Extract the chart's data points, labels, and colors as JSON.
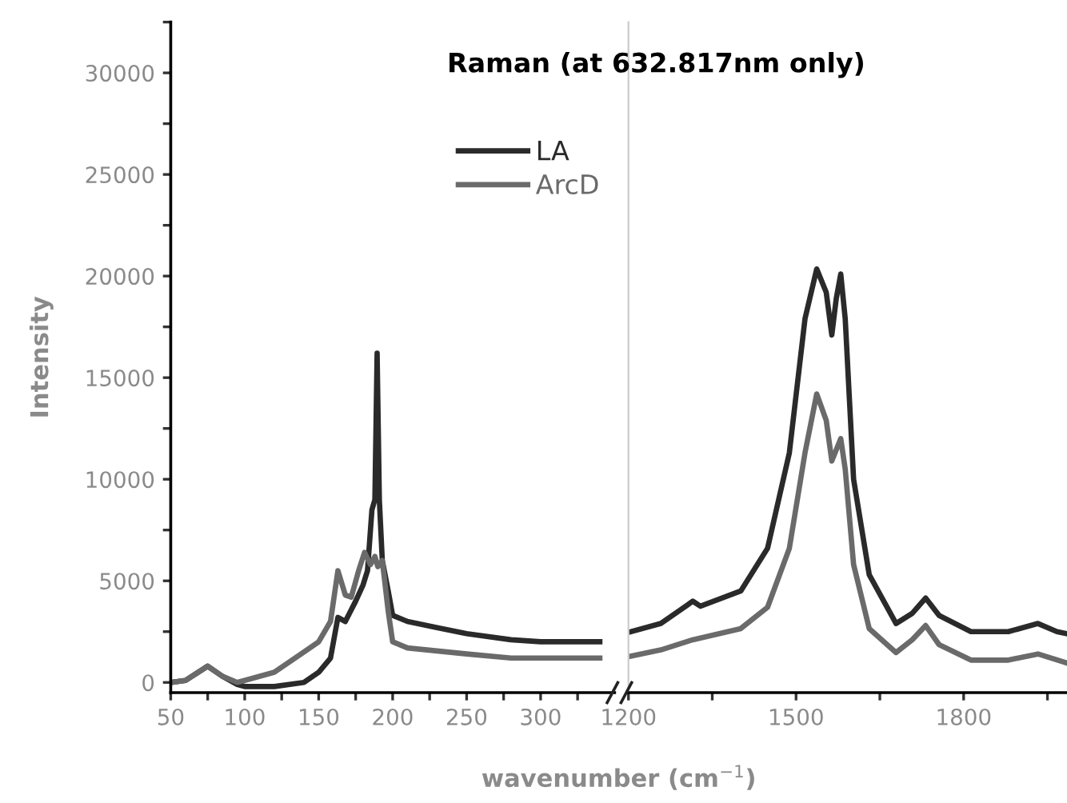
{
  "chart_data": [
    {
      "type": "line",
      "title": "Raman (at 632.817nm only)",
      "xlabel": "wavenumber (cm$^{−1}$)",
      "ylabel": "Intensity",
      "legend": "top right",
      "grid": false,
      "line_style": "solid",
      "marker": "none",
      "xlim": [
        50,
        350
      ],
      "xticks": [
        50,
        {
          "value": 75,
          "label": null
        },
        100,
        {
          "value": 125,
          "label": null
        },
        150,
        {
          "value": 175,
          "label": null
        },
        200,
        {
          "value": 225,
          "label": null
        },
        250,
        {
          "value": 275,
          "label": null
        },
        300,
        {
          "value": 325,
          "label": null
        }
      ],
      "ylim": [
        -500,
        32500
      ],
      "yticks": [
        0,
        {
          "value": 2500,
          "label": null
        },
        5000,
        {
          "value": 7500,
          "label": null
        },
        10000,
        {
          "value": 12500,
          "label": null
        },
        15000,
        {
          "value": 17500,
          "label": null
        },
        20000,
        {
          "value": 22500,
          "label": null
        },
        25000,
        {
          "value": 27500,
          "label": null
        },
        30000,
        {
          "value": 32500,
          "label": null
        }
      ],
      "series": [
        {
          "name": "LA",
          "color": "#2a2a2a",
          "x": [
            50,
            60,
            75,
            85,
            95,
            100,
            120,
            140,
            150,
            158,
            163,
            168,
            175,
            180,
            183,
            186,
            188,
            189.5,
            191,
            193,
            197,
            200,
            210,
            230,
            250,
            280,
            300,
            340
          ],
          "values": [
            0,
            100,
            800,
            300,
            -100,
            -200,
            -200,
            0,
            500,
            1200,
            3200,
            3000,
            4000,
            4800,
            5500,
            8500,
            9000,
            16200,
            9000,
            6000,
            4500,
            3300,
            3000,
            2700,
            2400,
            2100,
            2000,
            2000
          ]
        },
        {
          "name": "ArcD",
          "color": "#6a6a6a",
          "x": [
            50,
            60,
            75,
            85,
            95,
            100,
            120,
            140,
            150,
            158,
            163,
            168,
            172,
            177,
            181,
            185,
            188,
            190,
            193,
            197,
            200,
            210,
            250,
            280,
            340
          ],
          "values": [
            0,
            100,
            800,
            300,
            0,
            100,
            500,
            1500,
            2000,
            3000,
            5500,
            4300,
            4200,
            5500,
            6400,
            5800,
            6200,
            5700,
            6000,
            3500,
            2000,
            1700,
            1400,
            1200,
            1200
          ]
        }
      ]
    },
    {
      "type": "line",
      "tick_labels": "x",
      "grid": false,
      "line_style": "solid",
      "marker": "none",
      "xlim": [
        1200,
        1985
      ],
      "xticks": [
        1200,
        {
          "value": 1350,
          "label": null
        },
        1500,
        {
          "value": 1650,
          "label": null
        },
        1800,
        {
          "value": 1950,
          "label": null
        }
      ],
      "ylim": [
        -500,
        32500
      ],
      "series": [
        {
          "color": "#2a2a2a",
          "x": [
            1205,
            1258,
            1305,
            1315,
            1329,
            1401,
            1449,
            1488,
            1516,
            1537,
            1554,
            1564,
            1572,
            1580,
            1588,
            1603,
            1631,
            1679,
            1708,
            1732,
            1756,
            1813,
            1880,
            1933,
            1967,
            1985
          ],
          "values": [
            2500,
            2900,
            3800,
            4000,
            3750,
            4500,
            6600,
            11300,
            17900,
            20350,
            19200,
            17100,
            18900,
            20100,
            17900,
            10000,
            5300,
            2900,
            3400,
            4150,
            3300,
            2500,
            2500,
            2900,
            2500,
            2400
          ]
        },
        {
          "color": "#6a6a6a",
          "x": [
            1205,
            1258,
            1315,
            1401,
            1449,
            1488,
            1516,
            1537,
            1554,
            1564,
            1580,
            1588,
            1603,
            1631,
            1679,
            1708,
            1732,
            1756,
            1813,
            1880,
            1933,
            1985
          ],
          "values": [
            1300,
            1600,
            2100,
            2650,
            3700,
            6600,
            11300,
            14200,
            12900,
            10900,
            12000,
            10500,
            5800,
            2650,
            1470,
            2100,
            2800,
            1860,
            1100,
            1100,
            1400,
            950
          ]
        }
      ]
    }
  ]
}
